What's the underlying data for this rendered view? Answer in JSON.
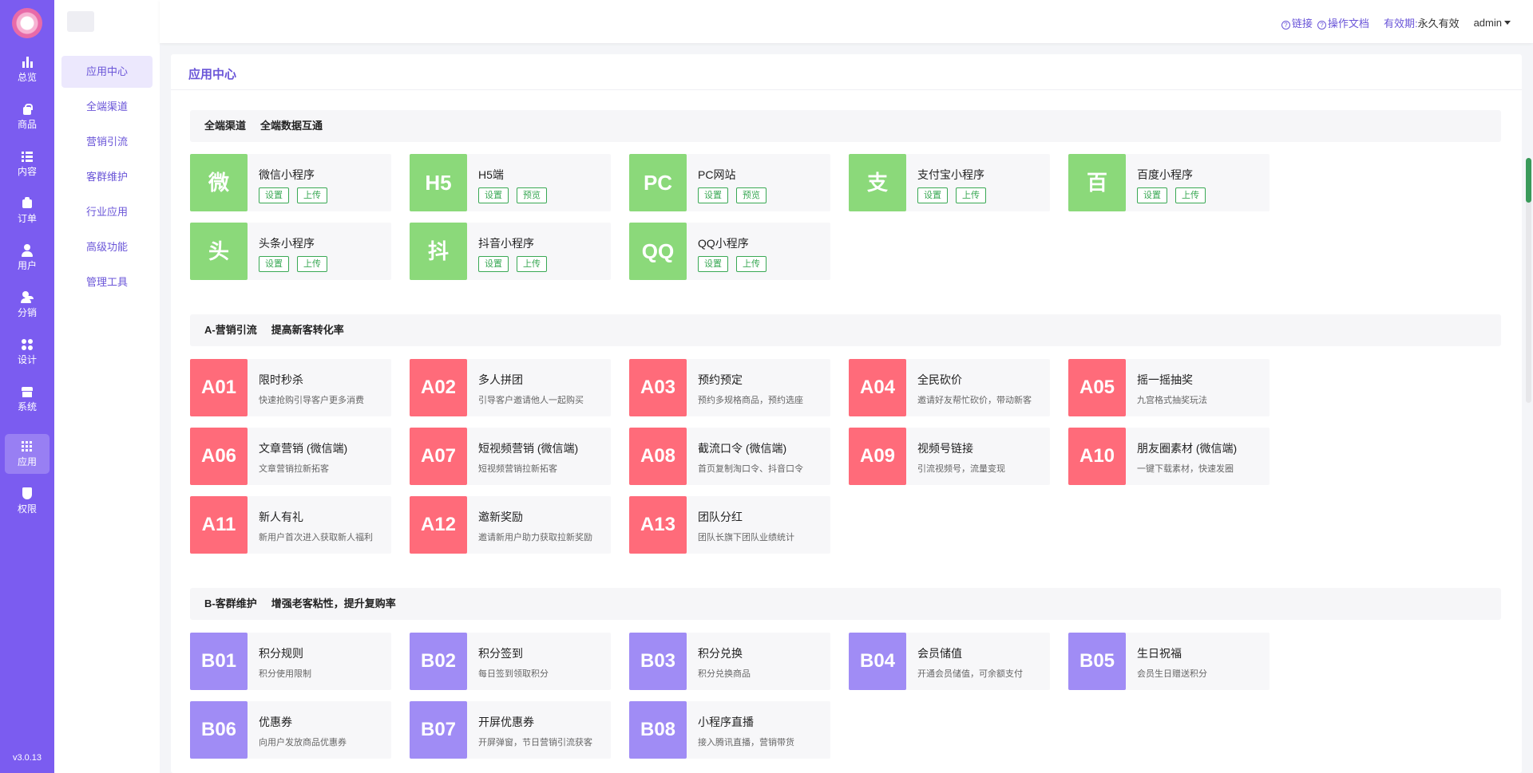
{
  "rail": {
    "items": [
      {
        "label": "总览",
        "icon": "bar-chart-icon"
      },
      {
        "label": "商品",
        "icon": "shopping-bag-icon"
      },
      {
        "label": "内容",
        "icon": "list-icon"
      },
      {
        "label": "订单",
        "icon": "order-icon"
      },
      {
        "label": "用户",
        "icon": "user-icon"
      },
      {
        "label": "分销",
        "icon": "distribution-icon"
      },
      {
        "label": "设计",
        "icon": "design-icon"
      },
      {
        "label": "系统",
        "icon": "store-icon"
      },
      {
        "label": "应用",
        "icon": "apps-grid-icon"
      },
      {
        "label": "权限",
        "icon": "shield-icon"
      }
    ],
    "active_index": 8,
    "version": "v3.0.13"
  },
  "subnav": {
    "items": [
      "应用中心",
      "全端渠道",
      "营销引流",
      "客群维护",
      "行业应用",
      "高级功能",
      "管理工具"
    ],
    "active_index": 0
  },
  "header": {
    "link1": "链接",
    "link2": "操作文档",
    "validity_label": "有效期:",
    "validity_value": "永久有效",
    "user": "admin"
  },
  "page_title": "应用中心",
  "sections": {
    "channels": {
      "title": "全端渠道",
      "subtitle": "全端数据互通",
      "cards": [
        {
          "badge": "微",
          "name": "微信小程序",
          "btn1": "设置",
          "btn2": "上传"
        },
        {
          "badge": "H5",
          "name": "H5端",
          "btn1": "设置",
          "btn2": "预览"
        },
        {
          "badge": "PC",
          "name": "PC网站",
          "btn1": "设置",
          "btn2": "预览"
        },
        {
          "badge": "支",
          "name": "支付宝小程序",
          "btn1": "设置",
          "btn2": "上传"
        },
        {
          "badge": "百",
          "name": "百度小程序",
          "btn1": "设置",
          "btn2": "上传"
        },
        {
          "badge": "头",
          "name": "头条小程序",
          "btn1": "设置",
          "btn2": "上传"
        },
        {
          "badge": "抖",
          "name": "抖音小程序",
          "btn1": "设置",
          "btn2": "上传"
        },
        {
          "badge": "QQ",
          "name": "QQ小程序",
          "btn1": "设置",
          "btn2": "上传"
        }
      ]
    },
    "marketing": {
      "title": "A-营销引流",
      "subtitle": "提高新客转化率",
      "cards": [
        {
          "badge": "A01",
          "name": "限时秒杀",
          "desc": "快速抢购引导客户更多消费"
        },
        {
          "badge": "A02",
          "name": "多人拼团",
          "desc": "引导客户邀请他人一起购买"
        },
        {
          "badge": "A03",
          "name": "预约预定",
          "desc": "预约多规格商品，预约选座"
        },
        {
          "badge": "A04",
          "name": "全民砍价",
          "desc": "邀请好友帮忙砍价，带动新客"
        },
        {
          "badge": "A05",
          "name": "摇一摇抽奖",
          "desc": "九宫格式抽奖玩法"
        },
        {
          "badge": "A06",
          "name": "文章营销 (微信端)",
          "desc": "文章营销拉新拓客"
        },
        {
          "badge": "A07",
          "name": "短视频营销 (微信端)",
          "desc": "短视频营销拉新拓客"
        },
        {
          "badge": "A08",
          "name": "截流口令 (微信端)",
          "desc": "首页复制淘口令、抖音口令"
        },
        {
          "badge": "A09",
          "name": "视频号链接",
          "desc": "引流视频号，流量变现"
        },
        {
          "badge": "A10",
          "name": "朋友圈素材 (微信端)",
          "desc": "一键下载素材，快速发圈"
        },
        {
          "badge": "A11",
          "name": "新人有礼",
          "desc": "新用户首次进入获取新人福利"
        },
        {
          "badge": "A12",
          "name": "邀新奖励",
          "desc": "邀请新用户助力获取拉新奖励"
        },
        {
          "badge": "A13",
          "name": "团队分红",
          "desc": "团队长旗下团队业绩统计"
        }
      ]
    },
    "retention": {
      "title": "B-客群维护",
      "subtitle": "增强老客粘性，提升复购率",
      "cards": [
        {
          "badge": "B01",
          "name": "积分规则",
          "desc": "积分使用限制"
        },
        {
          "badge": "B02",
          "name": "积分签到",
          "desc": "每日签到领取积分"
        },
        {
          "badge": "B03",
          "name": "积分兑换",
          "desc": "积分兑换商品"
        },
        {
          "badge": "B04",
          "name": "会员储值",
          "desc": "开通会员储值，可余额支付"
        },
        {
          "badge": "B05",
          "name": "生日祝福",
          "desc": "会员生日赠送积分"
        },
        {
          "badge": "B06",
          "name": "优惠券",
          "desc": "向用户发放商品优惠券"
        },
        {
          "badge": "B07",
          "name": "开屏优惠券",
          "desc": "开屏弹窗，节日营销引流获客"
        },
        {
          "badge": "B08",
          "name": "小程序直播",
          "desc": "接入腾讯直播，营销带货"
        }
      ]
    }
  },
  "colors": {
    "primary": "#7b5cf0",
    "channel_badge": "#8bd97a",
    "marketing_badge": "#ff6b7a",
    "retention_badge": "#a08cf5",
    "button_green": "#39a854"
  }
}
